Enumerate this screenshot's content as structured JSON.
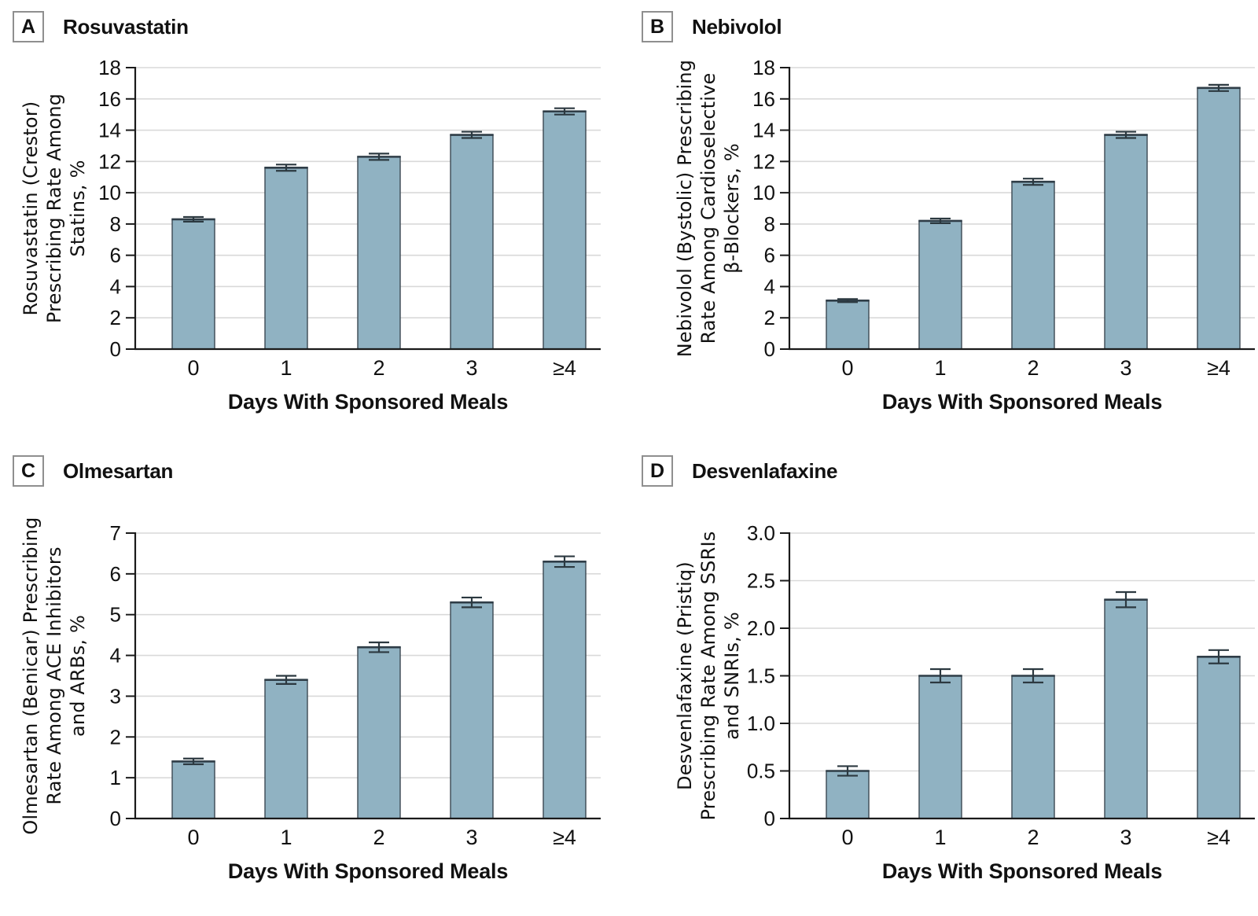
{
  "figure": {
    "x_axis_label": "Days With Sponsored Meals",
    "categories": [
      "0",
      "1",
      "2",
      "3",
      "≥4"
    ]
  },
  "style": {
    "background": "#ffffff",
    "bar_fill": "#90b2c2",
    "bar_stroke": "#3b4852",
    "bar_top_stroke": "#2f3d47",
    "error_color": "#2c3940",
    "grid_color": "#d9d9d9",
    "axis_color": "#1a1a1a",
    "text_color": "#111111",
    "panel_box_border": "#8f8f8f"
  },
  "chart_data": [
    {
      "type": "bar",
      "panel_label": "A",
      "title": "Rosuvastatin",
      "ylabel_lines": [
        "Rosuvastatin (Crestor)",
        "Prescribing Rate Among",
        "Statins, %"
      ],
      "xlabel": "Days With Sponsored Meals",
      "categories": [
        "0",
        "1",
        "2",
        "3",
        "≥4"
      ],
      "values": [
        8.3,
        11.6,
        12.3,
        13.7,
        15.2
      ],
      "errors": [
        0.15,
        0.2,
        0.2,
        0.2,
        0.2
      ],
      "ylim": [
        0,
        18
      ],
      "ytick_values": [
        0,
        2,
        4,
        6,
        8,
        10,
        12,
        14,
        16,
        18
      ],
      "ytick_labels": [
        "0",
        "2",
        "4",
        "6",
        "8",
        "10",
        "12",
        "14",
        "16",
        "18"
      ],
      "grid": true,
      "legend": null
    },
    {
      "type": "bar",
      "panel_label": "B",
      "title": "Nebivolol",
      "ylabel_lines": [
        "Nebivolol (Bystolic) Prescribing",
        "Rate Among Cardioselective",
        "β-Blockers, %"
      ],
      "xlabel": "Days With Sponsored Meals",
      "categories": [
        "0",
        "1",
        "2",
        "3",
        "≥4"
      ],
      "values": [
        3.1,
        8.2,
        10.7,
        13.7,
        16.7
      ],
      "errors": [
        0.1,
        0.15,
        0.2,
        0.2,
        0.2
      ],
      "ylim": [
        0,
        18
      ],
      "ytick_values": [
        0,
        2,
        4,
        6,
        8,
        10,
        12,
        14,
        16,
        18
      ],
      "ytick_labels": [
        "0",
        "2",
        "4",
        "6",
        "8",
        "10",
        "12",
        "14",
        "16",
        "18"
      ],
      "grid": true,
      "legend": null
    },
    {
      "type": "bar",
      "panel_label": "C",
      "title": "Olmesartan",
      "ylabel_lines": [
        "Olmesartan (Benicar) Prescribing",
        "Rate Among ACE Inhibitors",
        "and ARBs, %"
      ],
      "xlabel": "Days With Sponsored Meals",
      "categories": [
        "0",
        "1",
        "2",
        "3",
        "≥4"
      ],
      "values": [
        1.4,
        3.4,
        4.2,
        5.3,
        6.3
      ],
      "errors": [
        0.07,
        0.1,
        0.12,
        0.12,
        0.13
      ],
      "ylim": [
        0,
        7
      ],
      "ytick_values": [
        0,
        1,
        2,
        3,
        4,
        5,
        6,
        7
      ],
      "ytick_labels": [
        "0",
        "1",
        "2",
        "3",
        "4",
        "5",
        "6",
        "7"
      ],
      "grid": true,
      "legend": null
    },
    {
      "type": "bar",
      "panel_label": "D",
      "title": "Desvenlafaxine",
      "ylabel_lines": [
        "Desvenlafaxine (Pristiq)",
        "Prescribing Rate Among SSRIs",
        "and SNRIs, %"
      ],
      "xlabel": "Days With Sponsored Meals",
      "categories": [
        "0",
        "1",
        "2",
        "3",
        "≥4"
      ],
      "values": [
        0.5,
        1.5,
        1.5,
        2.3,
        1.7
      ],
      "errors": [
        0.05,
        0.07,
        0.07,
        0.08,
        0.07
      ],
      "ylim": [
        0,
        3
      ],
      "ytick_values": [
        0,
        0.5,
        1,
        1.5,
        2,
        2.5,
        3
      ],
      "ytick_labels": [
        "0",
        "0.5",
        "1.0",
        "1.5",
        "2.0",
        "2.5",
        "3.0"
      ],
      "grid": true,
      "legend": null
    }
  ]
}
